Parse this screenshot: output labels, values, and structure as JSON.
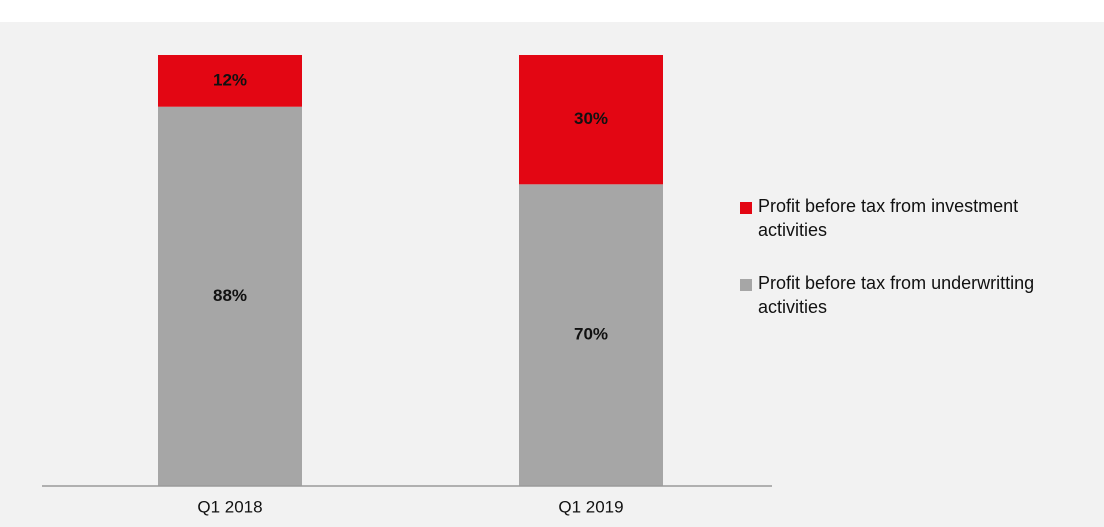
{
  "chart_data": {
    "type": "stacked_bar",
    "categories": [
      "Q1 2018",
      "Q1 2019"
    ],
    "series": [
      {
        "name": "Profit before tax from underwritting activities",
        "color": "#a6a6a6",
        "values": [
          88,
          70
        ],
        "value_labels": [
          "88%",
          "70%"
        ]
      },
      {
        "name": "Profit before tax from investment activities",
        "color": "#e30613",
        "values": [
          12,
          30
        ],
        "value_labels": [
          "12%",
          "30%"
        ]
      }
    ],
    "ylim": [
      0,
      100
    ],
    "legend": "right"
  }
}
